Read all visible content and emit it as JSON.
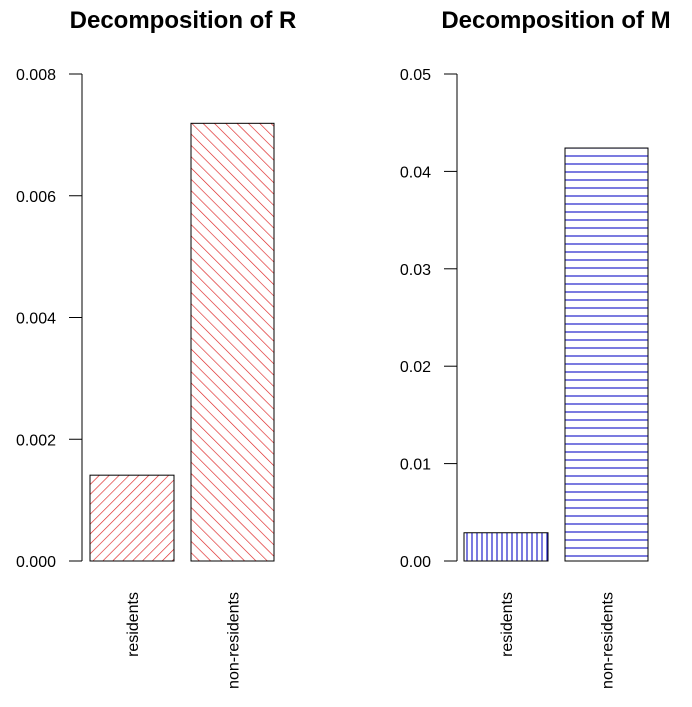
{
  "chart_data": [
    {
      "type": "bar",
      "title": "Decomposition of R",
      "categories": [
        "residents",
        "non-residents"
      ],
      "values": [
        0.00141,
        0.00719
      ],
      "ylim": [
        0,
        0.008
      ],
      "yticks": [
        "0.000",
        "0.002",
        "0.004",
        "0.006",
        "0.008"
      ],
      "ytick_values": [
        0,
        0.002,
        0.004,
        0.006,
        0.008
      ],
      "xlabel": "",
      "ylabel": "",
      "grid": false,
      "colors": [
        "#dd2222",
        "#dd2222"
      ],
      "hatch": [
        "diagonal-up",
        "diagonal-down"
      ]
    },
    {
      "type": "bar",
      "title": "Decomposition of M",
      "categories": [
        "residents",
        "non-residents"
      ],
      "values": [
        0.0029,
        0.0424
      ],
      "ylim": [
        0,
        0.05
      ],
      "yticks": [
        "0.00",
        "0.01",
        "0.02",
        "0.03",
        "0.04",
        "0.05"
      ],
      "ytick_values": [
        0,
        0.01,
        0.02,
        0.03,
        0.04,
        0.05
      ],
      "xlabel": "",
      "ylabel": "",
      "grid": false,
      "colors": [
        "#2222cc",
        "#2222cc"
      ],
      "hatch": [
        "vertical",
        "horizontal"
      ]
    }
  ]
}
